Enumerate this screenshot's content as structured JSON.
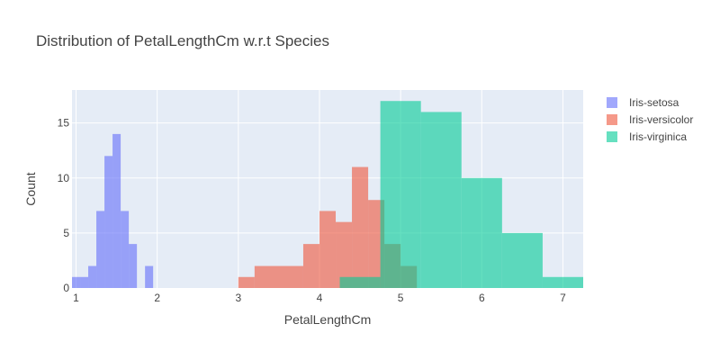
{
  "chart_data": {
    "type": "histogram",
    "title": "Distribution of PetalLengthCm w.r.t Species",
    "xlabel": "PetalLengthCm",
    "ylabel": "Count",
    "xlim": [
      0.95,
      7.25
    ],
    "ylim": [
      0,
      18
    ],
    "x_ticks": [
      1,
      2,
      3,
      4,
      5,
      6,
      7
    ],
    "y_ticks": [
      0,
      5,
      10,
      15
    ],
    "barmode": "overlay",
    "grid": true,
    "plot_background": "#e5ecf6",
    "legend_position": "top-right",
    "series": [
      {
        "name": "Iris-setosa",
        "color": "#636efa",
        "bins": [
          {
            "x0": 0.95,
            "x1": 1.05,
            "count": 1
          },
          {
            "x0": 1.05,
            "x1": 1.15,
            "count": 1
          },
          {
            "x0": 1.15,
            "x1": 1.25,
            "count": 2
          },
          {
            "x0": 1.25,
            "x1": 1.35,
            "count": 7
          },
          {
            "x0": 1.35,
            "x1": 1.45,
            "count": 12
          },
          {
            "x0": 1.45,
            "x1": 1.55,
            "count": 14
          },
          {
            "x0": 1.55,
            "x1": 1.65,
            "count": 7
          },
          {
            "x0": 1.65,
            "x1": 1.75,
            "count": 4
          },
          {
            "x0": 1.85,
            "x1": 1.95,
            "count": 2
          }
        ]
      },
      {
        "name": "Iris-versicolor",
        "color": "#ef553b",
        "bins": [
          {
            "x0": 3.0,
            "x1": 3.2,
            "count": 1
          },
          {
            "x0": 3.2,
            "x1": 3.8,
            "count": 2
          },
          {
            "x0": 3.8,
            "x1": 4.0,
            "count": 4
          },
          {
            "x0": 4.0,
            "x1": 4.2,
            "count": 7
          },
          {
            "x0": 4.2,
            "x1": 4.4,
            "count": 6
          },
          {
            "x0": 4.4,
            "x1": 4.6,
            "count": 11
          },
          {
            "x0": 4.6,
            "x1": 4.8,
            "count": 8
          },
          {
            "x0": 4.8,
            "x1": 5.0,
            "count": 4
          },
          {
            "x0": 5.0,
            "x1": 5.2,
            "count": 2
          }
        ]
      },
      {
        "name": "Iris-virginica",
        "color": "#00cc96",
        "bins": [
          {
            "x0": 4.25,
            "x1": 4.75,
            "count": 1
          },
          {
            "x0": 4.75,
            "x1": 5.25,
            "count": 17
          },
          {
            "x0": 5.25,
            "x1": 5.75,
            "count": 16
          },
          {
            "x0": 5.75,
            "x1": 6.25,
            "count": 10
          },
          {
            "x0": 6.25,
            "x1": 6.75,
            "count": 5
          },
          {
            "x0": 6.75,
            "x1": 7.25,
            "count": 1
          }
        ]
      }
    ]
  }
}
